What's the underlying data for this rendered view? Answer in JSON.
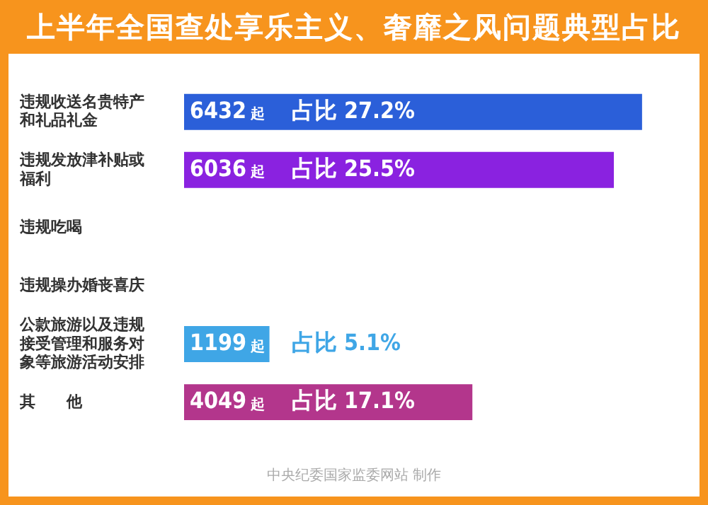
{
  "chart_data": {
    "type": "bar",
    "orientation": "horizontal",
    "title": "上半年全国查处享乐主义、奢靡之风问题典型占比",
    "categories": [
      "违规收送名贵特产和礼品礼金",
      "违规发放津补贴或福利",
      "违规吃喝",
      "违规操办婚丧喜庆",
      "公款旅游以及违规接受管理和服务对象等旅游活动安排",
      "其　　他"
    ],
    "values": [
      6432,
      6036,
      null,
      null,
      1199,
      4049
    ],
    "colors": [
      "#2b5fd9",
      "#8a22e0",
      "#d9307a",
      "#c9a3b4",
      "#3fa6e6",
      "#b3368c"
    ],
    "value_labels": [
      "6432 起",
      "6036 起",
      null,
      null,
      "1199 起",
      "4049 起"
    ],
    "tick_labels": "y",
    "annotations": [
      "占比 27.2%",
      "占比 25.5%",
      "占比 5.1%",
      "占比 17.1%",
      "中央纪委国家监委网站 制作"
    ]
  }
}
